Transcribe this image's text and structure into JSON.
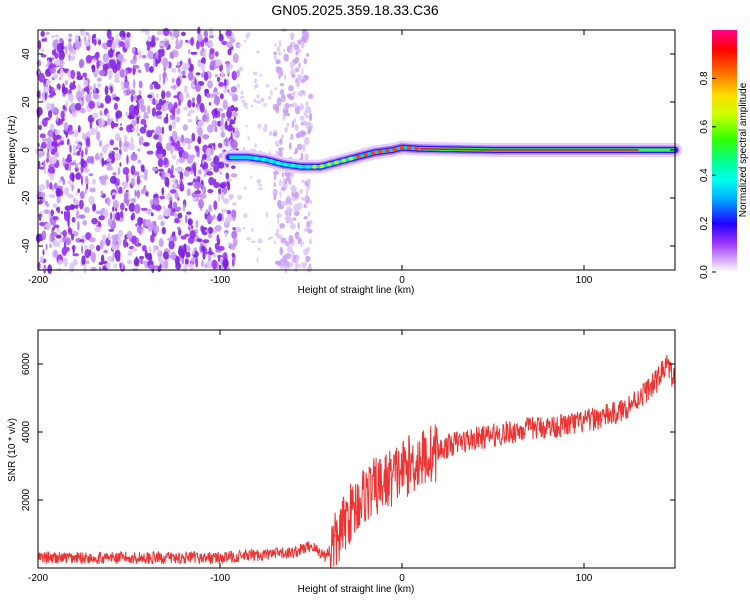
{
  "title": "GN05.2025.359.18.33.C36",
  "chart_data": [
    {
      "type": "heatmap",
      "title": "GN05.2025.359.18.33.C36",
      "xlabel": "Height of straight line (km)",
      "ylabel": "Frequency (Hz)",
      "xlim": [
        -200,
        150
      ],
      "ylim": [
        -50,
        50
      ],
      "xticks": [
        -200,
        -100,
        0,
        100
      ],
      "yticks": [
        -40,
        -20,
        0,
        20,
        40
      ],
      "colorbar": {
        "label": "Normalized spectral amplitude",
        "range": [
          0,
          1
        ],
        "ticks": [
          "0.0",
          "0.2",
          "0.4",
          "0.6",
          "0.8"
        ]
      },
      "ridge": {
        "x": [
          -95,
          -85,
          -75,
          -65,
          -55,
          -45,
          -35,
          -25,
          -15,
          -5,
          0,
          10,
          50,
          100,
          150
        ],
        "y": [
          -3,
          -3,
          -4,
          -6,
          -7,
          -7,
          -5,
          -3,
          -1,
          0,
          1,
          0.5,
          0,
          0,
          0
        ]
      }
    },
    {
      "type": "line",
      "xlabel": "Height of straight line (km)",
      "ylabel": "SNR (10 * v/v)",
      "xlim": [
        -200,
        150
      ],
      "ylim": [
        0,
        7000
      ],
      "xticks": [
        -200,
        -100,
        0,
        100
      ],
      "yticks": [
        2000,
        4000,
        6000
      ],
      "color": "#ee3333",
      "series": [
        {
          "name": "SNR",
          "x": [
            -200,
            -150,
            -100,
            -60,
            -50,
            -42,
            -35,
            -30,
            -20,
            -10,
            0,
            10,
            20,
            30,
            50,
            70,
            90,
            100,
            110,
            120,
            130,
            140,
            145,
            150
          ],
          "y": [
            300,
            300,
            300,
            450,
            650,
            350,
            900,
            1500,
            2200,
            2500,
            2900,
            3200,
            3450,
            3700,
            3900,
            4100,
            4200,
            4300,
            4450,
            4600,
            5000,
            5500,
            6000,
            5500
          ]
        }
      ]
    }
  ]
}
